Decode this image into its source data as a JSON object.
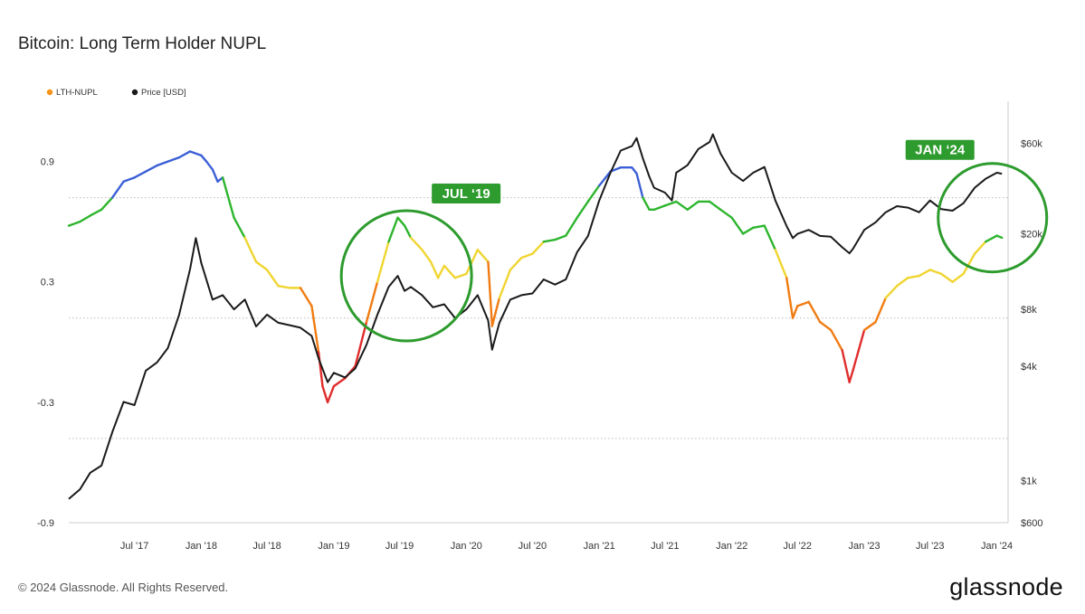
{
  "chart_data": {
    "type": "line",
    "title": "Bitcoin: Long Term Holder NUPL",
    "legend": {
      "placement": "top-left",
      "items": [
        {
          "name": "LTH-NUPL",
          "color": "#f7931a"
        },
        {
          "name": "Price [USD]",
          "color": "#1a1a1a"
        }
      ]
    },
    "x_ticks": [
      "Jul '17",
      "Jan '18",
      "Jul '18",
      "Jan '19",
      "Jul '19",
      "Jan '20",
      "Jul '20",
      "Jan '21",
      "Jul '21",
      "Jan '22",
      "Jul '22",
      "Jan '23",
      "Jul '23",
      "Jan '24"
    ],
    "y_left": {
      "ticks": [
        "0.9",
        "0.3",
        "-0.3",
        "-0.9"
      ],
      "range": [
        -0.9,
        1.2
      ]
    },
    "y_right": {
      "ticks": [
        "$60k",
        "$20k",
        "$8k",
        "$4k",
        "$1k",
        "$600"
      ],
      "scale": "log",
      "range": [
        600,
        100000
      ]
    },
    "grid": "horizontal dotted",
    "zone_colors": {
      "blue": "#3b5fd6",
      "green": "#2db52d",
      "yellow": "#f0d530",
      "orange": "#f07b12",
      "red": "#e02d2d"
    },
    "zone_thresholds": [
      0,
      0.25,
      0.5,
      0.75
    ],
    "series": [
      {
        "name": "LTH-NUPL",
        "x": [
          "2017-01-01",
          "2017-02-01",
          "2017-03-01",
          "2017-04-01",
          "2017-05-01",
          "2017-06-01",
          "2017-07-01",
          "2017-08-01",
          "2017-09-01",
          "2017-10-01",
          "2017-11-01",
          "2017-12-01",
          "2018-01-01",
          "2018-01-15",
          "2018-02-01",
          "2018-02-15",
          "2018-03-01",
          "2018-04-01",
          "2018-05-01",
          "2018-06-01",
          "2018-07-01",
          "2018-08-01",
          "2018-09-01",
          "2018-10-01",
          "2018-11-01",
          "2018-11-20",
          "2018-12-01",
          "2018-12-15",
          "2019-01-01",
          "2019-02-01",
          "2019-03-01",
          "2019-04-01",
          "2019-05-01",
          "2019-06-01",
          "2019-06-26",
          "2019-07-15",
          "2019-08-01",
          "2019-09-01",
          "2019-09-25",
          "2019-10-15",
          "2019-11-01",
          "2019-12-01",
          "2020-01-01",
          "2020-02-01",
          "2020-03-01",
          "2020-03-12",
          "2020-04-01",
          "2020-05-01",
          "2020-06-01",
          "2020-07-01",
          "2020-08-01",
          "2020-09-01",
          "2020-10-01",
          "2020-11-01",
          "2020-12-01",
          "2021-01-01",
          "2021-02-01",
          "2021-03-01",
          "2021-04-01",
          "2021-04-14",
          "2021-05-01",
          "2021-05-19",
          "2021-06-01",
          "2021-07-01",
          "2021-08-01",
          "2021-09-01",
          "2021-10-01",
          "2021-11-01",
          "2021-12-01",
          "2022-01-01",
          "2022-02-01",
          "2022-03-01",
          "2022-04-01",
          "2022-05-01",
          "2022-06-01",
          "2022-06-18",
          "2022-07-01",
          "2022-08-01",
          "2022-09-01",
          "2022-10-01",
          "2022-11-01",
          "2022-11-21",
          "2022-12-01",
          "2023-01-01",
          "2023-02-01",
          "2023-03-01",
          "2023-04-01",
          "2023-05-01",
          "2023-06-01",
          "2023-07-01",
          "2023-08-01",
          "2023-09-01",
          "2023-10-01",
          "2023-11-01",
          "2023-12-01",
          "2024-01-01",
          "2024-01-15"
        ],
        "values": [
          0.58,
          0.6,
          0.63,
          0.66,
          0.72,
          0.8,
          0.82,
          0.85,
          0.88,
          0.9,
          0.92,
          0.95,
          0.93,
          0.9,
          0.86,
          0.8,
          0.82,
          0.62,
          0.52,
          0.4,
          0.36,
          0.28,
          0.27,
          0.27,
          0.18,
          -0.05,
          -0.22,
          -0.3,
          -0.22,
          -0.18,
          -0.12,
          0.1,
          0.3,
          0.5,
          0.62,
          0.58,
          0.52,
          0.46,
          0.4,
          0.32,
          0.38,
          0.32,
          0.34,
          0.46,
          0.4,
          0.08,
          0.22,
          0.36,
          0.42,
          0.44,
          0.5,
          0.51,
          0.53,
          0.62,
          0.7,
          0.78,
          0.85,
          0.87,
          0.87,
          0.84,
          0.72,
          0.66,
          0.66,
          0.68,
          0.7,
          0.66,
          0.7,
          0.7,
          0.66,
          0.62,
          0.54,
          0.57,
          0.58,
          0.46,
          0.32,
          0.12,
          0.18,
          0.2,
          0.1,
          0.06,
          -0.04,
          -0.2,
          -0.14,
          0.06,
          0.1,
          0.22,
          0.28,
          0.32,
          0.33,
          0.36,
          0.34,
          0.3,
          0.34,
          0.44,
          0.5,
          0.53,
          0.52
        ]
      },
      {
        "name": "Price [USD]",
        "x": [
          "2017-01-01",
          "2017-02-01",
          "2017-03-01",
          "2017-04-01",
          "2017-05-01",
          "2017-06-01",
          "2017-07-01",
          "2017-08-01",
          "2017-09-01",
          "2017-10-01",
          "2017-11-01",
          "2017-12-01",
          "2017-12-17",
          "2018-01-01",
          "2018-02-01",
          "2018-03-01",
          "2018-04-01",
          "2018-05-01",
          "2018-06-01",
          "2018-07-01",
          "2018-08-01",
          "2018-09-01",
          "2018-10-01",
          "2018-11-01",
          "2018-11-20",
          "2018-12-15",
          "2019-01-01",
          "2019-02-01",
          "2019-03-01",
          "2019-04-01",
          "2019-05-01",
          "2019-06-01",
          "2019-06-26",
          "2019-07-15",
          "2019-08-01",
          "2019-09-01",
          "2019-10-01",
          "2019-11-01",
          "2019-12-01",
          "2020-01-01",
          "2020-02-01",
          "2020-03-01",
          "2020-03-12",
          "2020-04-01",
          "2020-05-01",
          "2020-06-01",
          "2020-07-01",
          "2020-08-01",
          "2020-09-01",
          "2020-10-01",
          "2020-11-01",
          "2020-12-01",
          "2021-01-01",
          "2021-02-01",
          "2021-03-01",
          "2021-04-01",
          "2021-04-14",
          "2021-05-01",
          "2021-05-19",
          "2021-06-01",
          "2021-07-01",
          "2021-07-20",
          "2021-08-01",
          "2021-09-01",
          "2021-10-01",
          "2021-11-01",
          "2021-11-10",
          "2021-12-01",
          "2022-01-01",
          "2022-02-01",
          "2022-03-01",
          "2022-04-01",
          "2022-05-01",
          "2022-06-01",
          "2022-06-18",
          "2022-07-01",
          "2022-08-01",
          "2022-09-01",
          "2022-10-01",
          "2022-11-01",
          "2022-11-21",
          "2022-12-01",
          "2023-01-01",
          "2023-02-01",
          "2023-03-01",
          "2023-04-01",
          "2023-05-01",
          "2023-06-01",
          "2023-07-01",
          "2023-08-01",
          "2023-09-01",
          "2023-10-01",
          "2023-11-01",
          "2023-12-01",
          "2024-01-01",
          "2024-01-15"
        ],
        "values": [
          800,
          900,
          1100,
          1200,
          1800,
          2600,
          2500,
          3800,
          4200,
          5000,
          7500,
          13000,
          19000,
          14000,
          9000,
          9500,
          8000,
          9000,
          6500,
          7500,
          6800,
          6600,
          6400,
          5800,
          4400,
          3300,
          3700,
          3500,
          3900,
          5200,
          7500,
          10500,
          12000,
          10000,
          10500,
          9500,
          8200,
          8500,
          7200,
          8000,
          9500,
          7000,
          4900,
          6800,
          9000,
          9500,
          9700,
          11500,
          10800,
          11500,
          16000,
          19500,
          30000,
          42000,
          55000,
          58000,
          64000,
          50000,
          40000,
          35000,
          33000,
          30000,
          42000,
          46000,
          56000,
          61000,
          67000,
          53000,
          42000,
          38000,
          42000,
          45000,
          30000,
          22000,
          19000,
          20000,
          21000,
          19500,
          19300,
          17000,
          15800,
          16700,
          21000,
          23000,
          26000,
          28000,
          27500,
          26000,
          30000,
          27000,
          26500,
          29000,
          35000,
          39000,
          42000,
          41500
        ]
      }
    ],
    "annotations": [
      {
        "label": "JUL ‘19",
        "date": "2019-07-20",
        "value": 0.33
      },
      {
        "label": "JAN ‘24",
        "date": "2023-12-20",
        "value": 0.62
      }
    ]
  },
  "footer": {
    "copyright": "© 2024 Glassnode. All Rights Reserved.",
    "logo": "glassnode"
  },
  "colors": {
    "annotation": "#2d9b2d",
    "grid": "#bbbbbb",
    "axis": "#cccccc"
  }
}
